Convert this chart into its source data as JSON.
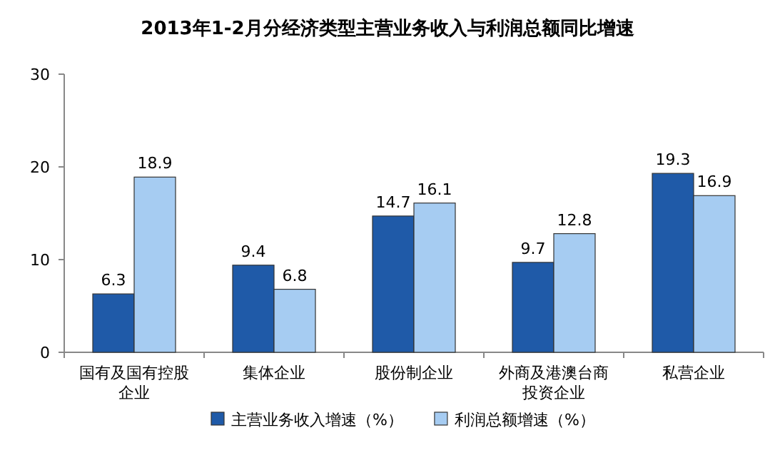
{
  "chart_data": {
    "type": "bar",
    "title": "2013年1-2月分经济类型主营业务收入与利润总额同比增速",
    "categories": [
      "国有及国有控股企业",
      "集体企业",
      "股份制企业",
      "外商及港澳台商投资企业",
      "私营企业"
    ],
    "series": [
      {
        "name": "主营业务收入增速（%）",
        "color": "#1f5aa8",
        "values": [
          6.3,
          9.4,
          14.7,
          9.7,
          19.3
        ]
      },
      {
        "name": "利润总额增速（%）",
        "color": "#a6ccf2",
        "values": [
          18.9,
          6.8,
          16.1,
          12.8,
          16.9
        ]
      }
    ],
    "ylim": [
      0,
      30
    ],
    "yticks": [
      0,
      10,
      20,
      30
    ],
    "data_labels": true,
    "grid": false,
    "legend": "bottom"
  }
}
